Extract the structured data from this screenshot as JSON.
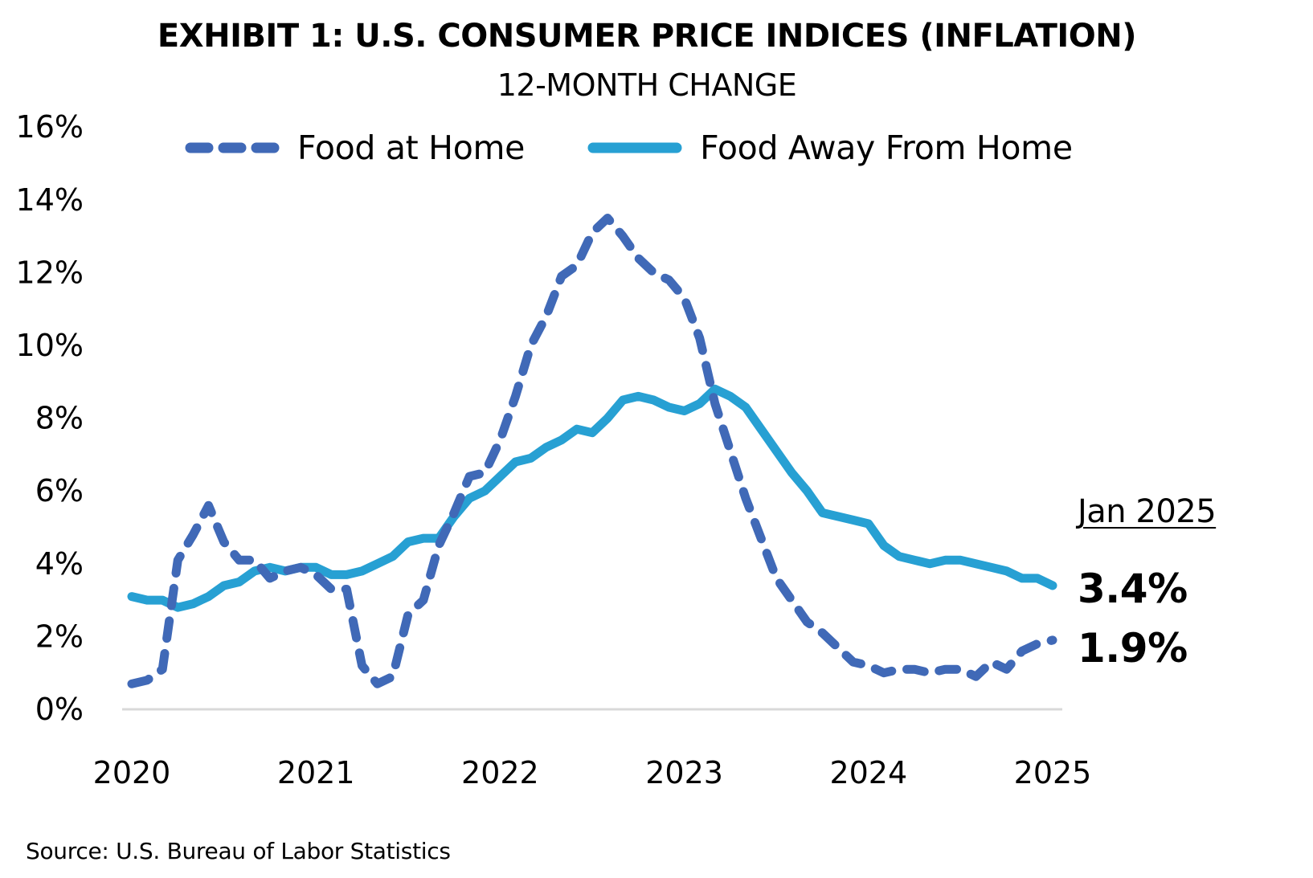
{
  "header": {
    "title": "EXHIBIT 1: U.S. CONSUMER PRICE INDICES (INFLATION)",
    "subtitle": "12-MONTH CHANGE"
  },
  "legend": [
    {
      "label": "Food at Home",
      "style": "dashed",
      "color": "#4069b7"
    },
    {
      "label": "Food Away From Home",
      "style": "solid",
      "color": "#27a0d3"
    }
  ],
  "annotation": {
    "date_label": "Jan 2025",
    "food_away_value": "3.4%",
    "food_home_value": "1.9%"
  },
  "footer": {
    "source": "Source: U.S. Bureau of Labor Statistics"
  },
  "colors": {
    "food_at_home": "#4069b7",
    "food_away": "#27a0d3",
    "axis": "#d9d9d9"
  },
  "chart_data": {
    "type": "line",
    "title": "EXHIBIT 1: U.S. CONSUMER PRICE INDICES (INFLATION)",
    "subtitle": "12-MONTH CHANGE",
    "xlabel": "",
    "ylabel": "",
    "x_start": "2020-01",
    "x_end": "2025-01",
    "x_frequency": "monthly",
    "x_tick_labels": [
      "2020",
      "2021",
      "2022",
      "2023",
      "2024",
      "2025"
    ],
    "y_tick_labels": [
      "0%",
      "2%",
      "4%",
      "6%",
      "8%",
      "10%",
      "12%",
      "14%",
      "16%"
    ],
    "y_ticks": [
      0,
      2,
      4,
      6,
      8,
      10,
      12,
      14,
      16
    ],
    "ylim": [
      0,
      16
    ],
    "grid": false,
    "legend_position": "top",
    "series": [
      {
        "name": "Food at Home",
        "line_style": "dashed",
        "values": [
          0.7,
          0.8,
          1.1,
          4.1,
          4.8,
          5.6,
          4.6,
          4.1,
          4.1,
          3.6,
          3.8,
          3.9,
          3.7,
          3.3,
          3.3,
          1.2,
          0.7,
          0.9,
          2.6,
          3.0,
          4.5,
          5.4,
          6.4,
          6.5,
          7.4,
          8.6,
          10.0,
          10.8,
          11.9,
          12.2,
          13.1,
          13.5,
          13.0,
          12.4,
          12.0,
          11.8,
          11.3,
          10.2,
          8.4,
          7.1,
          5.8,
          4.7,
          3.6,
          3.0,
          2.4,
          2.1,
          1.7,
          1.3,
          1.2,
          1.0,
          1.1,
          1.1,
          1.0,
          1.1,
          1.1,
          0.9,
          1.3,
          1.1,
          1.6,
          1.8,
          1.9
        ]
      },
      {
        "name": "Food Away From Home",
        "line_style": "solid",
        "values": [
          3.1,
          3.0,
          3.0,
          2.8,
          2.9,
          3.1,
          3.4,
          3.5,
          3.8,
          3.9,
          3.8,
          3.9,
          3.9,
          3.7,
          3.7,
          3.8,
          4.0,
          4.2,
          4.6,
          4.7,
          4.7,
          5.3,
          5.8,
          6.0,
          6.4,
          6.8,
          6.9,
          7.2,
          7.4,
          7.7,
          7.6,
          8.0,
          8.5,
          8.6,
          8.5,
          8.3,
          8.2,
          8.4,
          8.8,
          8.6,
          8.3,
          7.7,
          7.1,
          6.5,
          6.0,
          5.4,
          5.3,
          5.2,
          5.1,
          4.5,
          4.2,
          4.1,
          4.0,
          4.1,
          4.1,
          4.0,
          3.9,
          3.8,
          3.6,
          3.6,
          3.4
        ]
      }
    ],
    "annotations": [
      {
        "text": "Jan 2025",
        "underline": true
      },
      {
        "text": "3.4%",
        "series": "Food Away From Home"
      },
      {
        "text": "1.9%",
        "series": "Food at Home"
      }
    ]
  }
}
